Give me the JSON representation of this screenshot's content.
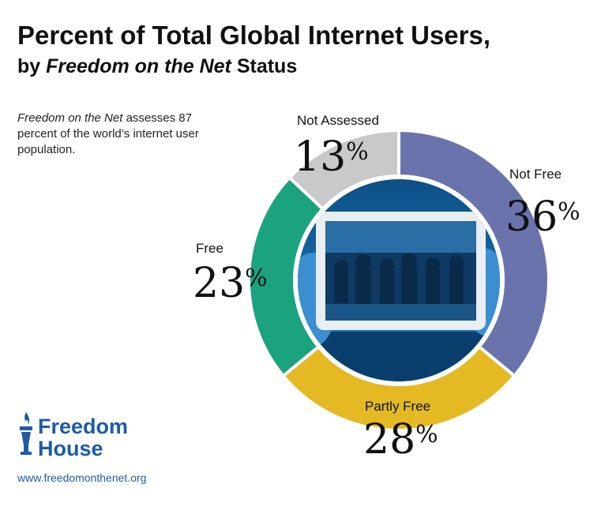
{
  "header": {
    "title": "Percent of Total Global Internet Users,",
    "subtitle_prefix": "by ",
    "subtitle_em": "Freedom on the Net",
    "subtitle_suffix": " Status"
  },
  "note": {
    "em": "Freedom on the Net",
    "text": " assesses 87 percent of the world’s internet user population."
  },
  "chart_data": {
    "type": "pie",
    "variant": "donut",
    "title": "Percent of Total Global Internet Users, by Freedom on the Net Status",
    "unit": "%",
    "slices": [
      {
        "label": "Not Free",
        "value": 36,
        "color": "#6b73ad"
      },
      {
        "label": "Partly Free",
        "value": 28,
        "color": "#e4b924"
      },
      {
        "label": "Free",
        "value": 23,
        "color": "#1ba37e"
      },
      {
        "label": "Not Assessed",
        "value": 13,
        "color": "#c9c9c9"
      }
    ],
    "center_image": "tablet-photo-of-protest"
  },
  "footer": {
    "logo_line1": "Freedom",
    "logo_line2": "House",
    "logo_icon": "torch-icon",
    "url": "www.freedomonthenet.org"
  }
}
